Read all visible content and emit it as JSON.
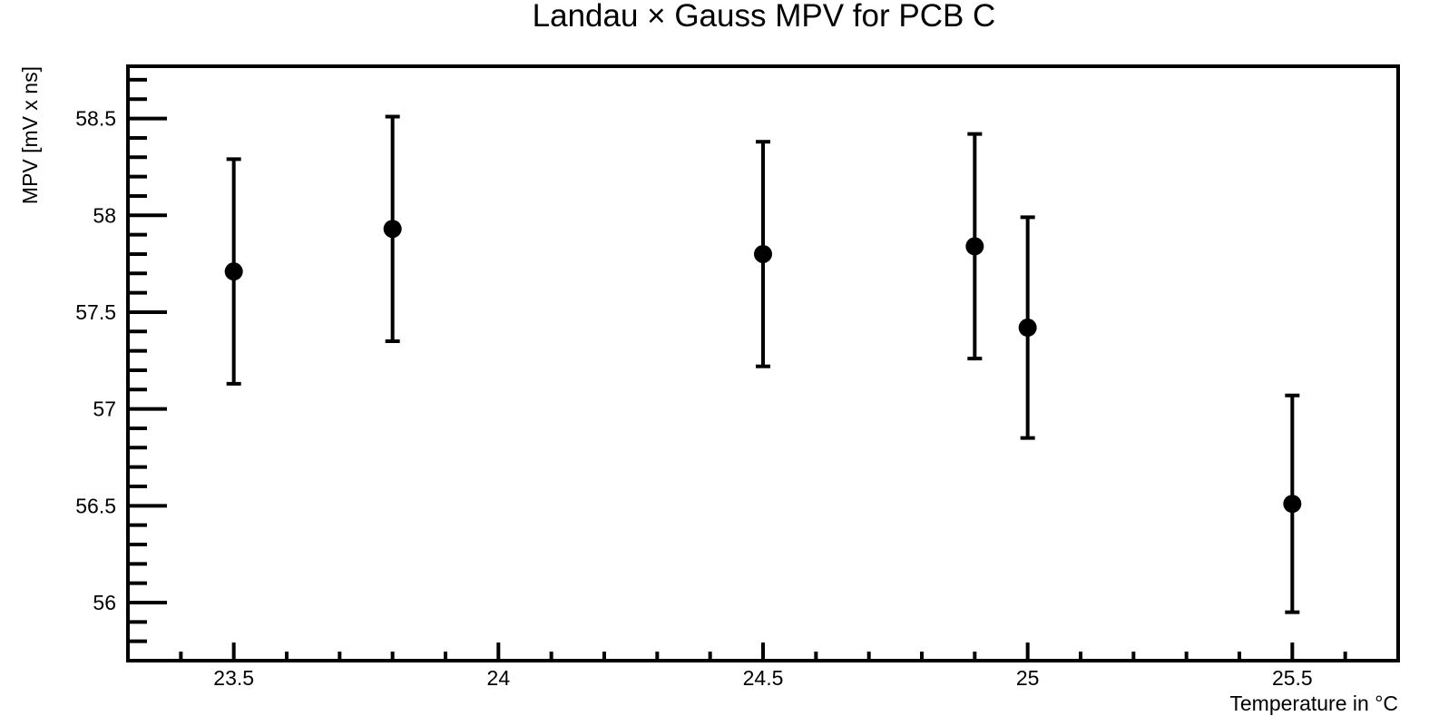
{
  "chart_data": {
    "type": "scatter",
    "title": "Landau × Gauss MPV for PCB C",
    "xlabel": "Temperature in °C",
    "ylabel": "MPV [mV x ns]",
    "xlim": [
      23.3,
      25.7
    ],
    "ylim": [
      55.7,
      58.77
    ],
    "x_ticks": [
      23.5,
      24,
      24.5,
      25,
      25.5
    ],
    "x_tick_labels": [
      "23.5",
      "24",
      "24.5",
      "25",
      "25.5"
    ],
    "y_ticks": [
      56,
      56.5,
      57,
      57.5,
      58,
      58.5
    ],
    "y_tick_labels": [
      "56",
      "56.5",
      "57",
      "57.5",
      "58",
      "58.5"
    ],
    "grid": false,
    "series": [
      {
        "points": [
          {
            "x": 23.5,
            "y": 57.71,
            "err": 0.58
          },
          {
            "x": 23.8,
            "y": 57.93,
            "err": 0.58
          },
          {
            "x": 24.5,
            "y": 57.8,
            "err": 0.58
          },
          {
            "x": 24.9,
            "y": 57.84,
            "err": 0.58
          },
          {
            "x": 25.0,
            "y": 57.42,
            "err": 0.57
          },
          {
            "x": 25.5,
            "y": 56.51,
            "err": 0.56
          }
        ]
      }
    ]
  }
}
